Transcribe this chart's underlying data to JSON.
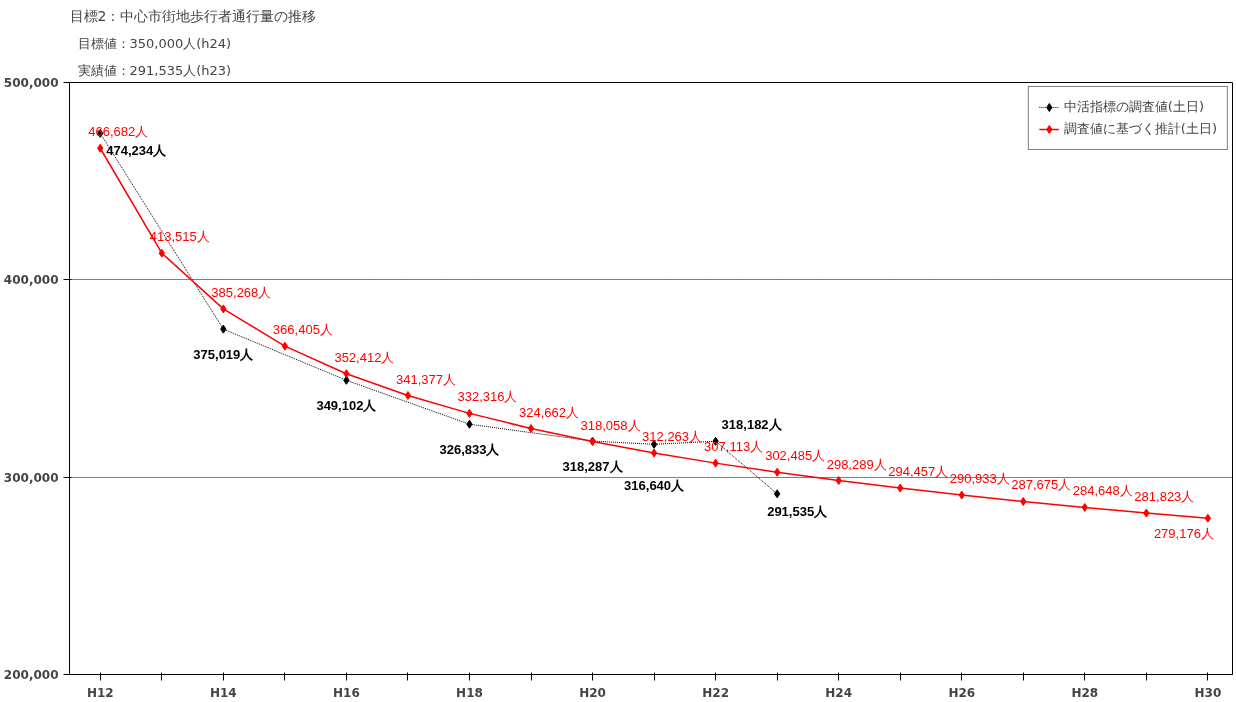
{
  "chart_data": {
    "type": "line",
    "title": "目標2：中心市街地歩行者通行量の推移",
    "annotations": [
      "目標値：350,000人(h24)",
      "実績値：291,535人(h23)"
    ],
    "categories": [
      "H12",
      null,
      "H14",
      null,
      "H16",
      null,
      "H18",
      null,
      "H20",
      null,
      "H22",
      null,
      "H24",
      null,
      "H26",
      null,
      "H28",
      null,
      "H30"
    ],
    "series": [
      {
        "name": "中活指標の調査値(土日)",
        "color": "#000000",
        "line_style": "dotted",
        "marker": "diamond",
        "values": [
          474234,
          null,
          375019,
          null,
          349102,
          null,
          326833,
          null,
          318287,
          316640,
          318182,
          291535,
          null,
          null,
          null,
          null,
          null,
          null,
          null
        ],
        "value_labels": [
          "474,234人",
          null,
          "375,019人",
          null,
          "349,102人",
          null,
          "326,833人",
          null,
          "318,287人",
          "316,640人",
          "318,182人",
          "291,535人",
          null,
          null,
          null,
          null,
          null,
          null,
          null
        ]
      },
      {
        "name": "調査値に基づく推計(土日)",
        "color": "#ff0000",
        "line_style": "solid",
        "marker": "diamond",
        "values": [
          466682,
          413515,
          385268,
          366405,
          352412,
          341377,
          332316,
          324662,
          318058,
          312263,
          307113,
          302485,
          298289,
          294457,
          290933,
          287675,
          284648,
          281823,
          279176
        ],
        "value_labels": [
          "466,682人",
          "413,515人",
          "385,268人",
          "366,405人",
          "352,412人",
          "341,377人",
          "332,316人",
          "324,662人",
          "318,058人",
          "312,263人",
          "307,113人",
          "302,485人",
          "298,289人",
          "294,457人",
          "290,933人",
          "287,675人",
          "284,648人",
          "281,823人",
          "279,176人"
        ]
      }
    ],
    "ylim": [
      200000,
      500000
    ],
    "yticks": [
      {
        "value": 200000,
        "label": "200,000"
      },
      {
        "value": 300000,
        "label": "300,000"
      },
      {
        "value": 400000,
        "label": "400,000"
      },
      {
        "value": 500000,
        "label": "500,000"
      }
    ],
    "grid": "y",
    "legend": "top right"
  }
}
